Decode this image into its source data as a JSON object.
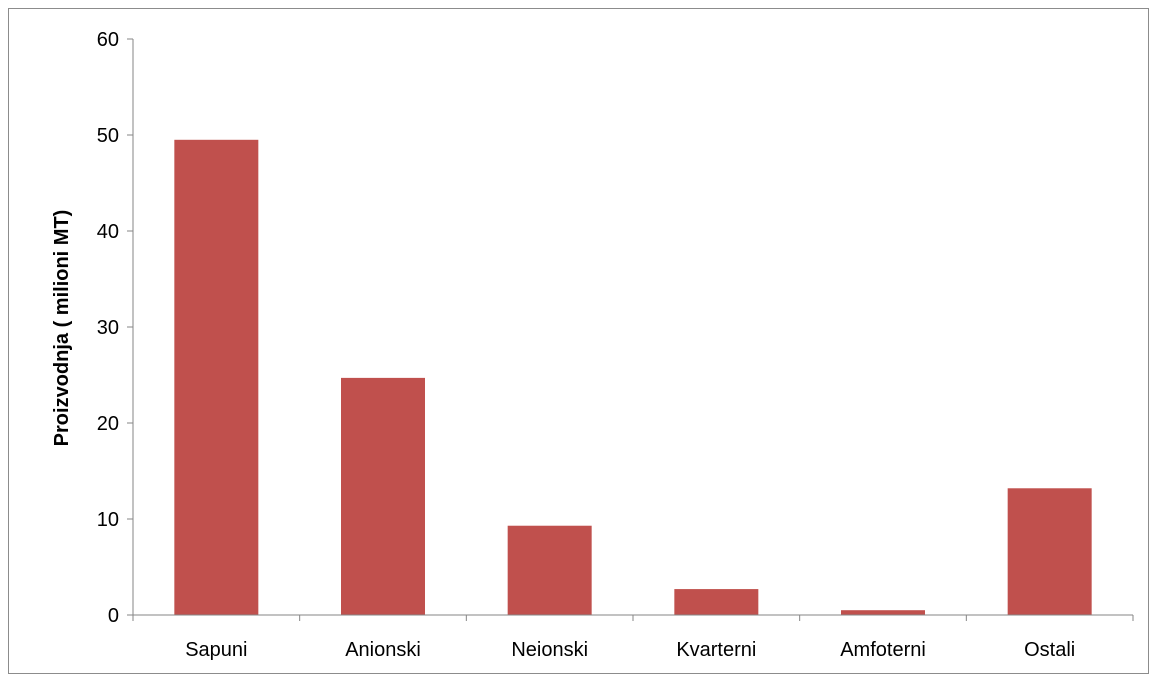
{
  "chart_data": {
    "type": "bar",
    "title": "",
    "xlabel": "",
    "ylabel": "Proizvodnja ( milioni MT)",
    "categories": [
      "Sapuni",
      "Anionski",
      "Neionski",
      "Kvarterni",
      "Amfoterni",
      "Ostali"
    ],
    "values": [
      49.5,
      24.7,
      9.3,
      2.7,
      0.5,
      13.2
    ],
    "ylim": [
      0,
      60
    ],
    "yticks": [
      0,
      10,
      20,
      30,
      40,
      50,
      60
    ],
    "grid": false,
    "legend": "none",
    "colors": {
      "bar": "#c0504d",
      "axis": "#868686"
    }
  }
}
